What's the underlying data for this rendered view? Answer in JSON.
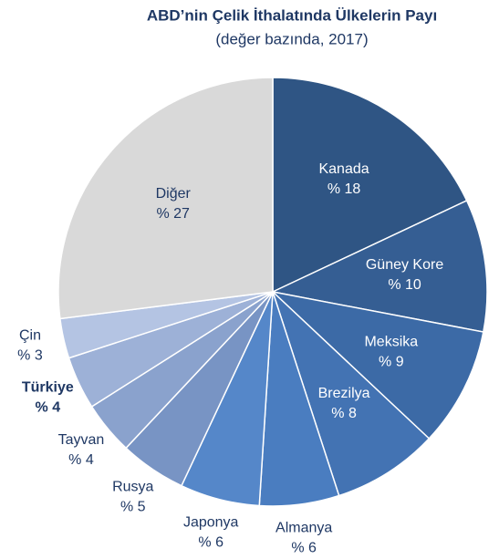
{
  "chart_data": {
    "type": "pie",
    "title": "ABD’nin Çelik İthalatında Ülkelerin Payı",
    "subtitle": "(değer bazında, 2017)",
    "categories": [
      "Kanada",
      "Güney Kore",
      "Meksika",
      "Brezilya",
      "Almanya",
      "Japonya",
      "Rusya",
      "Tayvan",
      "Türkiye",
      "Çin",
      "Diğer"
    ],
    "values": [
      18,
      10,
      9,
      8,
      6,
      6,
      5,
      4,
      4,
      3,
      27
    ],
    "value_labels": [
      "% 18",
      "% 10",
      "% 9",
      "% 8",
      "% 6",
      "% 6",
      "% 5",
      "% 4",
      "% 4",
      "% 3",
      "% 27"
    ],
    "colors": [
      "#2f5584",
      "#355e93",
      "#3c6aa6",
      "#4373b3",
      "#4a7dc0",
      "#5587c9",
      "#7894c4",
      "#8aa2cd",
      "#9db1d7",
      "#b4c4e3",
      "#d9d9d9"
    ],
    "bold": [
      false,
      false,
      false,
      false,
      false,
      false,
      false,
      false,
      true,
      false,
      false
    ]
  }
}
